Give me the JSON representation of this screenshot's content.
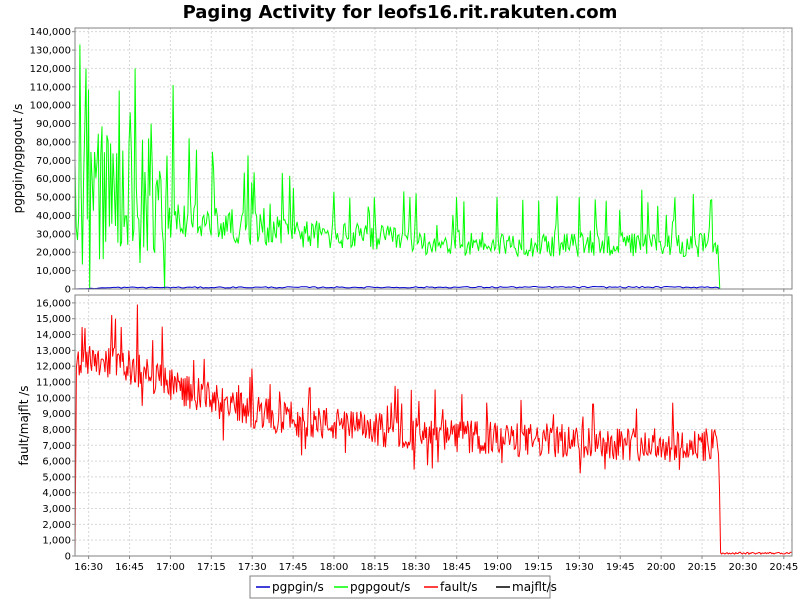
{
  "chart_data": {
    "type": "line",
    "title": "Paging Activity for leofs16.rit.rakuten.com",
    "xlabel": "",
    "x_tick_labels": [
      "16:30",
      "16:45",
      "17:00",
      "17:15",
      "17:30",
      "17:45",
      "18:00",
      "18:15",
      "18:30",
      "18:45",
      "19:00",
      "19:15",
      "19:30",
      "19:45",
      "20:00",
      "20:15",
      "20:30",
      "20:45"
    ],
    "x_range_minutes": [
      985,
      1248
    ],
    "x_tick_start_minute": 990,
    "x_tick_step_minutes": 15,
    "data_end_minute": 1221.5,
    "grid": true,
    "legend_position": "bottom",
    "panels": [
      {
        "ylabel": "pgpgin/pgpgout /s",
        "ylim": [
          0,
          142000
        ],
        "y_ticks": [
          0,
          10000,
          20000,
          30000,
          40000,
          50000,
          60000,
          70000,
          80000,
          90000,
          100000,
          110000,
          120000,
          130000,
          140000
        ],
        "y_tick_labels": [
          "0",
          "10,000",
          "20,000",
          "30,000",
          "40,000",
          "50,000",
          "60,000",
          "70,000",
          "80,000",
          "90,000",
          "100,000",
          "110,000",
          "120,000",
          "130,000",
          "140,000"
        ],
        "series": [
          {
            "name": "pgpgout/s",
            "color": "#00ff00",
            "x": [
              985,
              990,
              995,
              1000,
              1005,
              1010,
              1015,
              1020,
              1030,
              1040,
              1050,
              1060,
              1070,
              1080,
              1090,
              1100,
              1110,
              1120,
              1130,
              1140,
              1150,
              1160,
              1170,
              1180,
              1190,
              1200,
              1210,
              1221
            ],
            "values": [
              40000,
              55000,
              48000,
              45000,
              50000,
              48000,
              42000,
              38000,
              36000,
              35000,
              33000,
              32000,
              30000,
              29000,
              28000,
              27000,
              26000,
              25000,
              25000,
              25000,
              24000,
              24000,
              24000,
              24000,
              24000,
              24000,
              24000,
              24000
            ],
            "peaks": [
              [
                987,
                133000
              ],
              [
                989,
                120000
              ],
              [
                1001,
                108000
              ],
              [
                1007,
                120000
              ],
              [
                1013,
                90000
              ],
              [
                1021,
                111000
              ],
              [
                1027,
                82000
              ],
              [
                1036,
                65000
              ],
              [
                1050,
                58000
              ],
              [
                1065,
                55000
              ],
              [
                1080,
                53000
              ],
              [
                1095,
                50000
              ],
              [
                1110,
                52000
              ],
              [
                1125,
                50000
              ],
              [
                1140,
                50000
              ],
              [
                1155,
                48000
              ],
              [
                1170,
                50000
              ],
              [
                1180,
                48000
              ],
              [
                1193,
                54000
              ],
              [
                1205,
                50000
              ],
              [
                1218,
                48000
              ]
            ]
          },
          {
            "name": "pgpgin/s",
            "color": "#0000cc",
            "x": [
              985,
              1000,
              1050,
              1100,
              1150,
              1200,
              1221
            ],
            "values": [
              0,
              800,
              900,
              900,
              1000,
              1000,
              1000
            ]
          }
        ]
      },
      {
        "ylabel": "fault/majflt /s",
        "ylim": [
          0,
          16500
        ],
        "y_ticks": [
          0,
          1000,
          2000,
          3000,
          4000,
          5000,
          6000,
          7000,
          8000,
          9000,
          10000,
          11000,
          12000,
          13000,
          14000,
          15000,
          16000
        ],
        "y_tick_labels": [
          "0",
          "1,000",
          "2,000",
          "3,000",
          "4,000",
          "5,000",
          "6,000",
          "7,000",
          "8,000",
          "9,000",
          "10,000",
          "11,000",
          "12,000",
          "13,000",
          "14,000",
          "15,000",
          "16,000"
        ],
        "series": [
          {
            "name": "fault/s",
            "color": "#ff0000",
            "x": [
              985,
              990,
              1000,
              1010,
              1020,
              1030,
              1040,
              1050,
              1060,
              1070,
              1080,
              1090,
              1100,
              1110,
              1120,
              1130,
              1140,
              1150,
              1160,
              1170,
              1180,
              1190,
              1200,
              1210,
              1221,
              1222,
              1248
            ],
            "values": [
              12200,
              12600,
              12200,
              11600,
              10900,
              10200,
              9500,
              9100,
              8800,
              8500,
              8300,
              8100,
              7900,
              7700,
              7600,
              7500,
              7400,
              7300,
              7300,
              7200,
              7200,
              7100,
              7000,
              7000,
              7000,
              200,
              150
            ],
            "peaks": [
              [
                1008,
                15900
              ],
              [
                1017,
                14500
              ],
              [
                1045,
                10800
              ],
              [
                1060,
                10400
              ],
              [
                1101,
                9700
              ],
              [
                1111,
                9800
              ],
              [
                1136,
                9700
              ],
              [
                1175,
                9600
              ]
            ]
          },
          {
            "name": "majflt/s",
            "color": "#000000",
            "x": [
              985,
              1248
            ],
            "values": [
              0,
              0
            ]
          }
        ]
      }
    ],
    "legend": [
      {
        "name": "pgpgin/s",
        "color": "#0000cc"
      },
      {
        "name": "pgpgout/s",
        "color": "#00ff00"
      },
      {
        "name": "fault/s",
        "color": "#ff0000"
      },
      {
        "name": "majflt/s",
        "color": "#000000"
      }
    ]
  }
}
